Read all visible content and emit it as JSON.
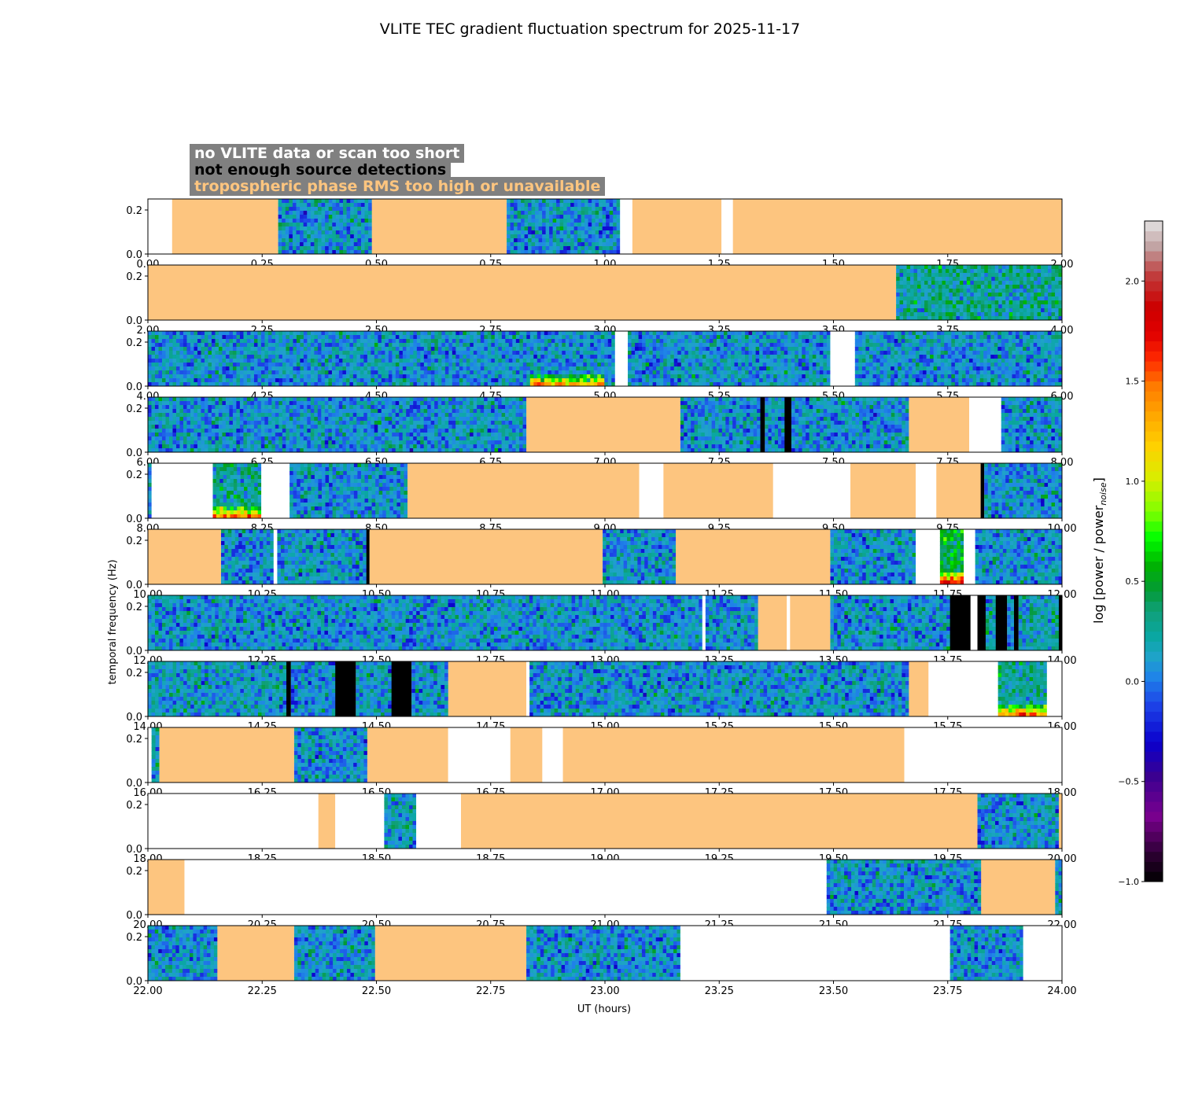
{
  "chart_data": {
    "type": "heatmap",
    "title": "VLITE TEC gradient fluctuation spectrum for 2025-11-17",
    "xlabel": "UT (hours)",
    "ylabel": "temporal frequency (Hz)",
    "ylim": [
      0,
      0.25
    ],
    "yticks": [
      "0.0",
      "0.2"
    ],
    "colorbar": {
      "label": "log [power / power",
      "label_sub": "noise",
      "label_close": "]",
      "range": [
        -1.0,
        2.3
      ],
      "ticks": [
        -1.0,
        -0.5,
        0.0,
        0.5,
        1.0,
        1.5,
        2.0
      ],
      "tick_labels": [
        "−1.0",
        "−0.5",
        "0.0",
        "0.5",
        "1.0",
        "1.5",
        "2.0"
      ]
    },
    "legend": [
      {
        "label": "no VLITE data or scan too short",
        "color": "#ffffff",
        "category": "none"
      },
      {
        "label": "not enough source detections",
        "color": "#000000",
        "category": "black"
      },
      {
        "label": "tropospheric phase RMS too high or unavailable",
        "color": "#fdc57f",
        "category": "orange"
      }
    ],
    "category_colors": {
      "none": "#ffffff",
      "black": "#000000",
      "orange": "#fdc57f"
    },
    "panels": [
      {
        "start": 0,
        "end": 2,
        "tick_labels": [
          "0.00",
          "0.25",
          "0.50",
          "0.75",
          "1.00",
          "1.25",
          "1.50",
          "1.75",
          "2.00"
        ],
        "segments": [
          {
            "from": 0.0,
            "to": 0.053,
            "kind": "none"
          },
          {
            "from": 0.053,
            "to": 0.285,
            "kind": "orange"
          },
          {
            "from": 0.285,
            "to": 0.49,
            "kind": "data",
            "mean": 0.1
          },
          {
            "from": 0.49,
            "to": 0.785,
            "kind": "orange"
          },
          {
            "from": 0.785,
            "to": 1.033,
            "kind": "data",
            "mean": 0.1
          },
          {
            "from": 1.033,
            "to": 1.06,
            "kind": "none"
          },
          {
            "from": 1.06,
            "to": 1.255,
            "kind": "orange"
          },
          {
            "from": 1.255,
            "to": 1.28,
            "kind": "none"
          },
          {
            "from": 1.28,
            "to": 2.0,
            "kind": "orange"
          }
        ]
      },
      {
        "start": 2,
        "end": 4,
        "tick_labels": [
          "2.00",
          "2.25",
          "2.50",
          "2.75",
          "3.00",
          "3.25",
          "3.50",
          "3.75",
          "4.00"
        ],
        "segments": [
          {
            "from": 2.0,
            "to": 3.637,
            "kind": "orange"
          },
          {
            "from": 3.637,
            "to": 4.0,
            "kind": "data",
            "mean": 0.25
          }
        ]
      },
      {
        "start": 4,
        "end": 6,
        "tick_labels": [
          "4.00",
          "4.25",
          "4.50",
          "4.75",
          "5.00",
          "5.25",
          "5.50",
          "5.75",
          "6.00"
        ],
        "segments": [
          {
            "from": 4.0,
            "to": 5.022,
            "kind": "data",
            "mean": 0.1,
            "hot_from": 4.84,
            "hot_to": 5.0
          },
          {
            "from": 5.022,
            "to": 5.05,
            "kind": "none"
          },
          {
            "from": 5.05,
            "to": 5.493,
            "kind": "data",
            "mean": 0.1
          },
          {
            "from": 5.493,
            "to": 5.547,
            "kind": "none"
          },
          {
            "from": 5.547,
            "to": 6.0,
            "kind": "data",
            "mean": 0.1
          }
        ]
      },
      {
        "start": 6,
        "end": 8,
        "tick_labels": [
          "6.00",
          "6.25",
          "6.50",
          "6.75",
          "7.00",
          "7.25",
          "7.50",
          "7.75",
          "8.00"
        ],
        "segments": [
          {
            "from": 6.0,
            "to": 6.828,
            "kind": "data",
            "mean": 0.1
          },
          {
            "from": 6.828,
            "to": 7.165,
            "kind": "orange"
          },
          {
            "from": 7.165,
            "to": 7.34,
            "kind": "data",
            "mean": 0.1
          },
          {
            "from": 7.34,
            "to": 7.35,
            "kind": "black"
          },
          {
            "from": 7.35,
            "to": 7.393,
            "kind": "data",
            "mean": 0.1
          },
          {
            "from": 7.393,
            "to": 7.408,
            "kind": "black"
          },
          {
            "from": 7.408,
            "to": 7.665,
            "kind": "data",
            "mean": 0.1
          },
          {
            "from": 7.665,
            "to": 7.797,
            "kind": "orange"
          },
          {
            "from": 7.797,
            "to": 7.867,
            "kind": "none"
          },
          {
            "from": 7.867,
            "to": 8.0,
            "kind": "data",
            "mean": 0.1
          }
        ]
      },
      {
        "start": 8,
        "end": 10,
        "tick_labels": [
          "8.00",
          "8.25",
          "8.50",
          "8.75",
          "9.00",
          "9.25",
          "9.50",
          "9.75",
          "10.00"
        ],
        "segments": [
          {
            "from": 8.0,
            "to": 8.008,
            "kind": "data",
            "mean": 0.1
          },
          {
            "from": 8.008,
            "to": 8.142,
            "kind": "none"
          },
          {
            "from": 8.142,
            "to": 8.248,
            "kind": "data",
            "mean": 0.25,
            "hot_from": 8.14,
            "hot_to": 8.25
          },
          {
            "from": 8.248,
            "to": 8.31,
            "kind": "none"
          },
          {
            "from": 8.31,
            "to": 8.568,
            "kind": "data",
            "mean": 0.1
          },
          {
            "from": 8.568,
            "to": 9.075,
            "kind": "orange"
          },
          {
            "from": 9.075,
            "to": 9.128,
            "kind": "none"
          },
          {
            "from": 9.128,
            "to": 9.368,
            "kind": "orange"
          },
          {
            "from": 9.368,
            "to": 9.537,
            "kind": "none"
          },
          {
            "from": 9.537,
            "to": 9.68,
            "kind": "orange"
          },
          {
            "from": 9.68,
            "to": 9.725,
            "kind": "none"
          },
          {
            "from": 9.725,
            "to": 9.822,
            "kind": "orange"
          },
          {
            "from": 9.822,
            "to": 9.83,
            "kind": "black"
          },
          {
            "from": 9.83,
            "to": 10.0,
            "kind": "data",
            "mean": 0.1
          }
        ]
      },
      {
        "start": 10,
        "end": 12,
        "tick_labels": [
          "10.00",
          "10.25",
          "10.50",
          "10.75",
          "11.00",
          "11.25",
          "11.50",
          "11.75",
          "12.00"
        ],
        "segments": [
          {
            "from": 10.0,
            "to": 10.16,
            "kind": "orange"
          },
          {
            "from": 10.16,
            "to": 10.275,
            "kind": "data",
            "mean": 0.1
          },
          {
            "from": 10.275,
            "to": 10.283,
            "kind": "none"
          },
          {
            "from": 10.283,
            "to": 10.478,
            "kind": "data",
            "mean": 0.1
          },
          {
            "from": 10.478,
            "to": 10.485,
            "kind": "black"
          },
          {
            "from": 10.485,
            "to": 10.995,
            "kind": "orange"
          },
          {
            "from": 10.995,
            "to": 11.155,
            "kind": "data",
            "mean": 0.1
          },
          {
            "from": 11.155,
            "to": 11.493,
            "kind": "orange"
          },
          {
            "from": 11.493,
            "to": 11.68,
            "kind": "data",
            "mean": 0.1
          },
          {
            "from": 11.68,
            "to": 11.733,
            "kind": "none"
          },
          {
            "from": 11.733,
            "to": 11.785,
            "kind": "data",
            "mean": 0.5,
            "hot_from": 11.733,
            "hot_to": 11.785
          },
          {
            "from": 11.785,
            "to": 11.81,
            "kind": "none"
          },
          {
            "from": 11.81,
            "to": 12.0,
            "kind": "data",
            "mean": 0.1
          }
        ]
      },
      {
        "start": 12,
        "end": 14,
        "tick_labels": [
          "12.00",
          "12.25",
          "12.50",
          "12.75",
          "13.00",
          "13.25",
          "13.50",
          "13.75",
          "14.00"
        ],
        "segments": [
          {
            "from": 12.0,
            "to": 13.213,
            "kind": "data",
            "mean": 0.1
          },
          {
            "from": 13.213,
            "to": 13.22,
            "kind": "none"
          },
          {
            "from": 13.22,
            "to": 13.335,
            "kind": "data",
            "mean": 0.1
          },
          {
            "from": 13.335,
            "to": 13.398,
            "kind": "orange"
          },
          {
            "from": 13.398,
            "to": 13.405,
            "kind": "none"
          },
          {
            "from": 13.405,
            "to": 13.493,
            "kind": "orange"
          },
          {
            "from": 13.493,
            "to": 13.755,
            "kind": "data",
            "mean": 0.1
          },
          {
            "from": 13.755,
            "to": 13.8,
            "kind": "black"
          },
          {
            "from": 13.8,
            "to": 13.815,
            "kind": "none"
          },
          {
            "from": 13.815,
            "to": 13.833,
            "kind": "black"
          },
          {
            "from": 13.833,
            "to": 13.855,
            "kind": "data",
            "mean": 0.15
          },
          {
            "from": 13.855,
            "to": 13.88,
            "kind": "black"
          },
          {
            "from": 13.88,
            "to": 13.895,
            "kind": "data",
            "mean": 0.1
          },
          {
            "from": 13.895,
            "to": 13.905,
            "kind": "black"
          },
          {
            "from": 13.905,
            "to": 13.993,
            "kind": "data",
            "mean": 0.2
          },
          {
            "from": 13.993,
            "to": 14.0,
            "kind": "black"
          }
        ]
      },
      {
        "start": 14,
        "end": 16,
        "tick_labels": [
          "14.00",
          "14.25",
          "14.50",
          "14.75",
          "15.00",
          "15.25",
          "15.50",
          "15.75",
          "16.00"
        ],
        "segments": [
          {
            "from": 14.0,
            "to": 14.303,
            "kind": "data",
            "mean": 0.15
          },
          {
            "from": 14.303,
            "to": 14.313,
            "kind": "black"
          },
          {
            "from": 14.313,
            "to": 14.41,
            "kind": "data",
            "mean": 0.1
          },
          {
            "from": 14.41,
            "to": 14.455,
            "kind": "black"
          },
          {
            "from": 14.455,
            "to": 14.533,
            "kind": "data",
            "mean": 0.1
          },
          {
            "from": 14.533,
            "to": 14.577,
            "kind": "black"
          },
          {
            "from": 14.577,
            "to": 14.657,
            "kind": "data",
            "mean": 0.1
          },
          {
            "from": 14.657,
            "to": 14.828,
            "kind": "orange"
          },
          {
            "from": 14.828,
            "to": 14.835,
            "kind": "none"
          },
          {
            "from": 14.835,
            "to": 15.665,
            "kind": "data",
            "mean": 0.1
          },
          {
            "from": 15.665,
            "to": 15.708,
            "kind": "orange"
          },
          {
            "from": 15.708,
            "to": 15.86,
            "kind": "none"
          },
          {
            "from": 15.86,
            "to": 15.967,
            "kind": "data",
            "mean": 0.25,
            "hot_from": 15.86,
            "hot_to": 15.967
          },
          {
            "from": 15.967,
            "to": 16.0,
            "kind": "none"
          }
        ]
      },
      {
        "start": 16,
        "end": 18,
        "tick_labels": [
          "16.00",
          "16.25",
          "16.50",
          "16.75",
          "17.00",
          "17.25",
          "17.50",
          "17.75",
          "18.00"
        ],
        "segments": [
          {
            "from": 16.0,
            "to": 16.008,
            "kind": "none"
          },
          {
            "from": 16.008,
            "to": 16.025,
            "kind": "data",
            "mean": 0.15
          },
          {
            "from": 16.025,
            "to": 16.32,
            "kind": "orange"
          },
          {
            "from": 16.32,
            "to": 16.48,
            "kind": "data",
            "mean": 0.1
          },
          {
            "from": 16.48,
            "to": 16.657,
            "kind": "orange"
          },
          {
            "from": 16.657,
            "to": 16.793,
            "kind": "none"
          },
          {
            "from": 16.793,
            "to": 16.863,
            "kind": "orange"
          },
          {
            "from": 16.863,
            "to": 16.908,
            "kind": "none"
          },
          {
            "from": 16.908,
            "to": 17.655,
            "kind": "orange"
          },
          {
            "from": 17.655,
            "to": 18.0,
            "kind": "none"
          }
        ]
      },
      {
        "start": 18,
        "end": 20,
        "tick_labels": [
          "18.00",
          "18.25",
          "18.50",
          "18.75",
          "19.00",
          "19.25",
          "19.50",
          "19.75",
          "20.00"
        ],
        "segments": [
          {
            "from": 18.0,
            "to": 18.373,
            "kind": "none"
          },
          {
            "from": 18.373,
            "to": 18.41,
            "kind": "orange"
          },
          {
            "from": 18.41,
            "to": 18.517,
            "kind": "none"
          },
          {
            "from": 18.517,
            "to": 18.587,
            "kind": "data",
            "mean": 0.15
          },
          {
            "from": 18.587,
            "to": 18.685,
            "kind": "none"
          },
          {
            "from": 18.685,
            "to": 19.815,
            "kind": "orange"
          },
          {
            "from": 19.815,
            "to": 19.993,
            "kind": "data",
            "mean": 0.1
          },
          {
            "from": 19.993,
            "to": 20.0,
            "kind": "orange"
          }
        ]
      },
      {
        "start": 20,
        "end": 22,
        "tick_labels": [
          "20.00",
          "20.25",
          "20.50",
          "20.75",
          "21.00",
          "21.25",
          "21.50",
          "21.75",
          "22.00"
        ],
        "segments": [
          {
            "from": 20.0,
            "to": 20.08,
            "kind": "orange"
          },
          {
            "from": 20.08,
            "to": 21.485,
            "kind": "none"
          },
          {
            "from": 21.485,
            "to": 21.823,
            "kind": "data",
            "mean": 0.1
          },
          {
            "from": 21.823,
            "to": 21.985,
            "kind": "orange"
          },
          {
            "from": 21.985,
            "to": 22.0,
            "kind": "data",
            "mean": 0.1
          }
        ]
      },
      {
        "start": 22,
        "end": 24,
        "tick_labels": [
          "22.00",
          "22.25",
          "22.50",
          "22.75",
          "23.00",
          "23.25",
          "23.50",
          "23.75",
          "24.00"
        ],
        "segments": [
          {
            "from": 22.0,
            "to": 22.152,
            "kind": "data",
            "mean": 0.1
          },
          {
            "from": 22.152,
            "to": 22.32,
            "kind": "orange"
          },
          {
            "from": 22.32,
            "to": 22.497,
            "kind": "data",
            "mean": 0.1
          },
          {
            "from": 22.497,
            "to": 22.828,
            "kind": "orange"
          },
          {
            "from": 22.828,
            "to": 23.165,
            "kind": "data",
            "mean": 0.1
          },
          {
            "from": 23.165,
            "to": 23.755,
            "kind": "none"
          },
          {
            "from": 23.755,
            "to": 23.915,
            "kind": "data",
            "mean": 0.1
          },
          {
            "from": 23.915,
            "to": 24.0,
            "kind": "none"
          }
        ]
      }
    ]
  }
}
